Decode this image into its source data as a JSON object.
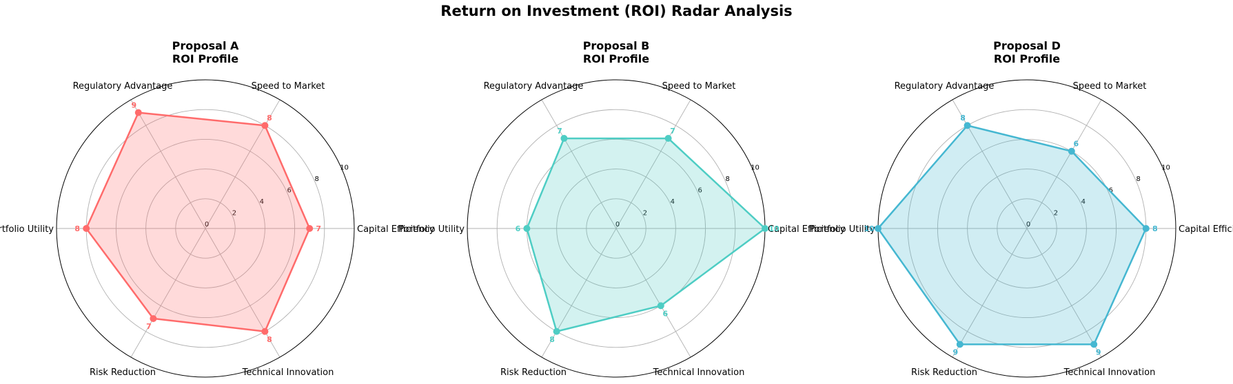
{
  "title": "Return on Investment (ROI) Radar Analysis",
  "chart_data": [
    {
      "type": "radar",
      "title_line1": "Proposal A",
      "title_line2": "ROI Profile",
      "color": "#ff6b6b",
      "categories": [
        "Capital Efficiency",
        "Speed to Market",
        "Regulatory Advantage",
        "Portfolio Utility",
        "Risk Reduction",
        "Technical Innovation"
      ],
      "values": [
        7,
        8,
        9,
        8,
        7,
        8
      ],
      "rlim": [
        0,
        10
      ],
      "rticks": [
        0,
        2,
        4,
        6,
        8,
        10
      ],
      "grid": true
    },
    {
      "type": "radar",
      "title_line1": "Proposal B",
      "title_line2": "ROI Profile",
      "color": "#4ecdc4",
      "categories": [
        "Capital Efficiency",
        "Speed to Market",
        "Regulatory Advantage",
        "Portfolio Utility",
        "Risk Reduction",
        "Technical Innovation"
      ],
      "values": [
        10,
        7,
        7,
        6,
        8,
        6
      ],
      "rlim": [
        0,
        10
      ],
      "rticks": [
        0,
        2,
        4,
        6,
        8,
        10
      ],
      "grid": true
    },
    {
      "type": "radar",
      "title_line1": "Proposal D",
      "title_line2": "ROI Profile",
      "color": "#45b7d1",
      "categories": [
        "Capital Efficiency",
        "Speed to Market",
        "Regulatory Advantage",
        "Portfolio Utility",
        "Risk Reduction",
        "Technical Innovation"
      ],
      "values": [
        8,
        6,
        8,
        10,
        9,
        9
      ],
      "rlim": [
        0,
        10
      ],
      "rticks": [
        0,
        2,
        4,
        6,
        8,
        10
      ],
      "grid": true
    }
  ]
}
